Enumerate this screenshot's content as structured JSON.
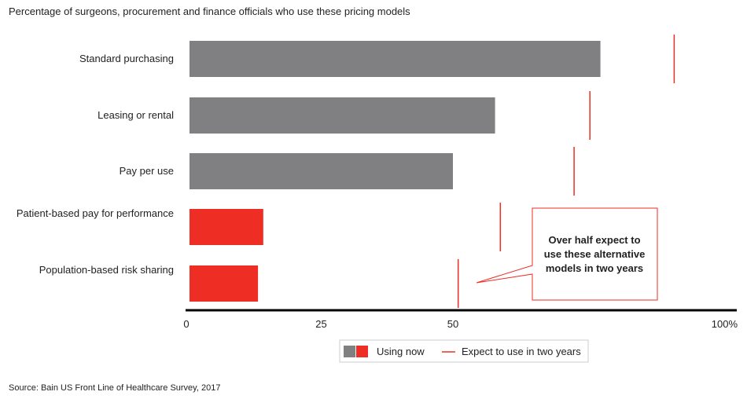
{
  "chart_data": {
    "type": "bar",
    "orientation": "horizontal",
    "subtitle": "Percentage of surgeons, procurement and finance officials who use these pricing models",
    "categories": [
      "Standard purchasing",
      "Leasing or rental",
      "Pay per use",
      "Patient-based pay for performance",
      "Population-based risk sharing"
    ],
    "series": [
      {
        "name": "Using now",
        "type": "bar",
        "values": [
          78,
          58,
          50,
          14,
          13
        ],
        "colors": [
          "#808083",
          "#808083",
          "#808083",
          "#ee2d24",
          "#ee2d24"
        ]
      },
      {
        "name": "Expect to use in two years",
        "type": "marker",
        "values": [
          92,
          76,
          73,
          59,
          51
        ],
        "color": "#ee2d24"
      }
    ],
    "xlim": [
      0,
      100
    ],
    "x_ticks": [
      "0",
      "25",
      "50",
      "100%"
    ],
    "x_tick_values": [
      0,
      25,
      50,
      100
    ],
    "grid": false,
    "legend_position": "bottom-center",
    "annotation": {
      "lines": [
        "Over half expect to",
        "use these alternative",
        "models in two years"
      ],
      "border_color": "#ee2d24"
    },
    "source": "Source: Bain US Front Line of Healthcare Survey, 2017"
  },
  "colors": {
    "gray": "#808083",
    "red": "#ee2d24",
    "axis": "#000000"
  }
}
